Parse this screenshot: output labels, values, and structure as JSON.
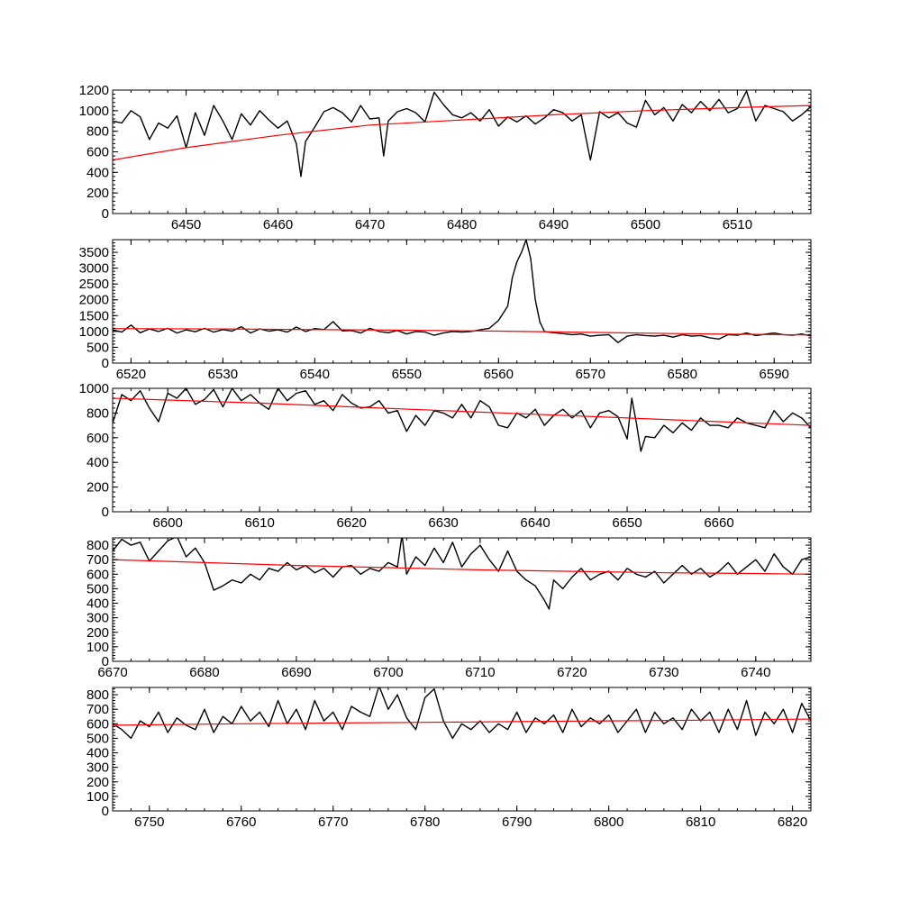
{
  "colors": {
    "spectrum": "#000000",
    "continuum": "#ff0000",
    "axes": "#000000",
    "background": "#ffffff"
  },
  "chart_data": [
    {
      "type": "line",
      "title": "",
      "xlabel": "",
      "ylabel": "",
      "xlim": [
        6442,
        6518
      ],
      "ylim": [
        0,
        1200
      ],
      "xticks": [
        6450,
        6460,
        6470,
        6480,
        6490,
        6500,
        6510
      ],
      "yticks": [
        0,
        200,
        400,
        600,
        800,
        1000,
        1200
      ],
      "grid": false,
      "series": [
        {
          "role": "spectrum",
          "x": [
            6442,
            6443,
            6444,
            6445,
            6446,
            6447,
            6448,
            6449,
            6450,
            6451,
            6452,
            6453,
            6454,
            6455,
            6456,
            6457,
            6458,
            6459,
            6460,
            6461,
            6462,
            6462.5,
            6463,
            6464,
            6465,
            6466,
            6467,
            6468,
            6469,
            6470,
            6471,
            6471.5,
            6472,
            6473,
            6474,
            6475,
            6476,
            6477,
            6478,
            6479,
            6480,
            6481,
            6482,
            6483,
            6484,
            6485,
            6486,
            6487,
            6488,
            6489,
            6490,
            6491,
            6492,
            6493,
            6494,
            6495,
            6496,
            6497,
            6498,
            6499,
            6500,
            6501,
            6502,
            6503,
            6504,
            6505,
            6506,
            6507,
            6508,
            6509,
            6510,
            6511,
            6512,
            6513,
            6514,
            6515,
            6516,
            6517,
            6518
          ],
          "y": [
            900,
            880,
            1000,
            940,
            720,
            880,
            830,
            950,
            640,
            980,
            760,
            1050,
            900,
            720,
            970,
            860,
            1000,
            910,
            830,
            900,
            680,
            360,
            700,
            840,
            990,
            1030,
            980,
            890,
            1050,
            920,
            930,
            560,
            900,
            990,
            1020,
            980,
            890,
            1180,
            1060,
            960,
            930,
            980,
            900,
            1010,
            850,
            940,
            890,
            950,
            870,
            930,
            1010,
            980,
            900,
            960,
            520,
            990,
            930,
            980,
            880,
            840,
            1100,
            960,
            1030,
            900,
            1060,
            980,
            1090,
            1000,
            1110,
            980,
            1020,
            1190,
            900,
            1050,
            1020,
            990,
            900,
            960,
            1040
          ]
        },
        {
          "role": "continuum",
          "x": [
            6442,
            6450,
            6460,
            6470,
            6480,
            6490,
            6500,
            6510,
            6518
          ],
          "y": [
            520,
            640,
            760,
            860,
            910,
            960,
            1000,
            1030,
            1050
          ]
        }
      ]
    },
    {
      "type": "line",
      "title": "",
      "xlabel": "",
      "ylabel": "",
      "xlim": [
        6518,
        6594
      ],
      "ylim": [
        0,
        3900
      ],
      "xticks": [
        6520,
        6530,
        6540,
        6550,
        6560,
        6570,
        6580,
        6590
      ],
      "yticks": [
        0,
        500,
        1000,
        1500,
        2000,
        2500,
        3000,
        3500
      ],
      "grid": false,
      "series": [
        {
          "role": "spectrum",
          "x": [
            6518,
            6519,
            6520,
            6521,
            6522,
            6523,
            6524,
            6525,
            6526,
            6527,
            6528,
            6529,
            6530,
            6531,
            6532,
            6533,
            6534,
            6535,
            6536,
            6537,
            6538,
            6539,
            6540,
            6541,
            6542,
            6543,
            6544,
            6545,
            6546,
            6547,
            6548,
            6549,
            6550,
            6551,
            6552,
            6553,
            6554,
            6555,
            6556,
            6557,
            6558,
            6559,
            6560,
            6561,
            6561.5,
            6562,
            6562.5,
            6563,
            6563.5,
            6564,
            6564.5,
            6565,
            6566,
            6567,
            6568,
            6569,
            6570,
            6571,
            6572,
            6573,
            6574,
            6575,
            6576,
            6577,
            6578,
            6579,
            6580,
            6581,
            6582,
            6583,
            6584,
            6585,
            6586,
            6587,
            6588,
            6589,
            6590,
            6591,
            6592,
            6593,
            6594
          ],
          "y": [
            1050,
            980,
            1200,
            960,
            1080,
            1000,
            1100,
            950,
            1050,
            990,
            1100,
            980,
            1060,
            1010,
            1150,
            950,
            1080,
            1010,
            1050,
            980,
            1140,
            1000,
            1090,
            1060,
            1310,
            1020,
            1030,
            950,
            1100,
            1000,
            960,
            1030,
            920,
            1000,
            980,
            880,
            950,
            1000,
            980,
            1000,
            1050,
            1100,
            1350,
            1800,
            2700,
            3200,
            3500,
            3900,
            3300,
            2000,
            1300,
            1000,
            960,
            930,
            900,
            920,
            850,
            880,
            900,
            650,
            850,
            900,
            870,
            850,
            880,
            820,
            900,
            850,
            870,
            800,
            760,
            900,
            880,
            950,
            870,
            910,
            950,
            900,
            880,
            920,
            860
          ]
        },
        {
          "role": "continuum",
          "x": [
            6518,
            6530,
            6540,
            6550,
            6560,
            6570,
            6580,
            6590,
            6594
          ],
          "y": [
            1090,
            1080,
            1060,
            1040,
            1010,
            970,
            930,
            900,
            890
          ]
        }
      ]
    },
    {
      "type": "line",
      "title": "",
      "xlabel": "",
      "ylabel": "",
      "xlim": [
        6594,
        6670
      ],
      "ylim": [
        0,
        1000
      ],
      "xticks": [
        6600,
        6610,
        6620,
        6630,
        6640,
        6650,
        6660
      ],
      "yticks": [
        0,
        200,
        400,
        600,
        800,
        1000
      ],
      "grid": false,
      "series": [
        {
          "role": "spectrum",
          "x": [
            6594,
            6595,
            6596,
            6597,
            6598,
            6599,
            6600,
            6601,
            6602,
            6603,
            6604,
            6605,
            6606,
            6607,
            6608,
            6609,
            6610,
            6611,
            6612,
            6613,
            6614,
            6615,
            6616,
            6617,
            6618,
            6619,
            6620,
            6621,
            6622,
            6623,
            6624,
            6625,
            6626,
            6627,
            6628,
            6629,
            6630,
            6631,
            6632,
            6633,
            6634,
            6635,
            6636,
            6637,
            6638,
            6639,
            6640,
            6641,
            6642,
            6643,
            6644,
            6645,
            6646,
            6647,
            6648,
            6649,
            6650,
            6650.5,
            6651,
            6651.5,
            6652,
            6653,
            6654,
            6655,
            6656,
            6657,
            6658,
            6659,
            6660,
            6661,
            6662,
            6663,
            6664,
            6665,
            6666,
            6667,
            6668,
            6669,
            6670
          ],
          "y": [
            720,
            950,
            900,
            980,
            840,
            730,
            960,
            920,
            1000,
            870,
            910,
            990,
            850,
            1000,
            900,
            950,
            880,
            830,
            1000,
            900,
            960,
            980,
            870,
            900,
            820,
            950,
            880,
            840,
            850,
            900,
            800,
            820,
            650,
            780,
            700,
            820,
            800,
            760,
            870,
            760,
            900,
            850,
            700,
            680,
            800,
            760,
            830,
            700,
            780,
            830,
            760,
            820,
            680,
            800,
            820,
            770,
            590,
            920,
            720,
            490,
            610,
            600,
            700,
            640,
            720,
            660,
            760,
            700,
            700,
            680,
            760,
            720,
            700,
            680,
            820,
            730,
            800,
            760,
            680
          ]
        },
        {
          "role": "continuum",
          "x": [
            6594,
            6600,
            6610,
            6620,
            6630,
            6640,
            6650,
            6660,
            6670
          ],
          "y": [
            920,
            905,
            880,
            850,
            820,
            790,
            760,
            730,
            700
          ]
        }
      ]
    },
    {
      "type": "line",
      "title": "",
      "xlabel": "",
      "ylabel": "",
      "xlim": [
        6670,
        6746
      ],
      "ylim": [
        0,
        850
      ],
      "xticks": [
        6670,
        6680,
        6690,
        6700,
        6710,
        6720,
        6730,
        6740
      ],
      "yticks": [
        0,
        100,
        200,
        300,
        400,
        500,
        600,
        700,
        800
      ],
      "grid": false,
      "series": [
        {
          "role": "spectrum",
          "x": [
            6670,
            6671,
            6672,
            6673,
            6674,
            6675,
            6676,
            6677,
            6678,
            6679,
            6680,
            6681,
            6682,
            6683,
            6684,
            6685,
            6686,
            6687,
            6688,
            6689,
            6690,
            6691,
            6692,
            6693,
            6694,
            6695,
            6696,
            6697,
            6698,
            6699,
            6700,
            6701,
            6701.5,
            6702,
            6703,
            6704,
            6705,
            6706,
            6707,
            6708,
            6709,
            6710,
            6711,
            6712,
            6713,
            6714,
            6715,
            6716,
            6717,
            6717.5,
            6718,
            6719,
            6720,
            6721,
            6722,
            6723,
            6724,
            6725,
            6726,
            6727,
            6728,
            6729,
            6730,
            6731,
            6732,
            6733,
            6734,
            6735,
            6736,
            6737,
            6738,
            6739,
            6740,
            6741,
            6742,
            6743,
            6744,
            6745,
            6746
          ],
          "y": [
            760,
            840,
            800,
            820,
            690,
            760,
            830,
            860,
            720,
            780,
            680,
            490,
            520,
            560,
            540,
            600,
            560,
            640,
            620,
            680,
            630,
            660,
            610,
            640,
            580,
            650,
            660,
            600,
            640,
            620,
            680,
            650,
            870,
            600,
            720,
            660,
            780,
            680,
            820,
            650,
            740,
            800,
            700,
            620,
            760,
            620,
            560,
            520,
            420,
            360,
            560,
            500,
            580,
            640,
            560,
            600,
            620,
            560,
            640,
            600,
            580,
            620,
            540,
            600,
            660,
            600,
            640,
            580,
            620,
            680,
            600,
            650,
            700,
            620,
            740,
            650,
            600,
            700,
            720
          ]
        },
        {
          "role": "continuum",
          "x": [
            6670,
            6680,
            6690,
            6700,
            6710,
            6720,
            6730,
            6740,
            6746
          ],
          "y": [
            700,
            680,
            660,
            645,
            630,
            620,
            610,
            605,
            600
          ]
        }
      ]
    },
    {
      "type": "line",
      "title": "",
      "xlabel": "",
      "ylabel": "",
      "xlim": [
        6746,
        6822
      ],
      "ylim": [
        0,
        850
      ],
      "xticks": [
        6750,
        6760,
        6770,
        6780,
        6790,
        6800,
        6810,
        6820
      ],
      "yticks": [
        0,
        100,
        200,
        300,
        400,
        500,
        600,
        700,
        800
      ],
      "grid": false,
      "series": [
        {
          "role": "spectrum",
          "x": [
            6746,
            6747,
            6748,
            6749,
            6750,
            6751,
            6752,
            6753,
            6754,
            6755,
            6756,
            6757,
            6758,
            6759,
            6760,
            6761,
            6762,
            6763,
            6764,
            6765,
            6766,
            6767,
            6768,
            6769,
            6770,
            6771,
            6772,
            6773,
            6774,
            6775,
            6776,
            6777,
            6778,
            6779,
            6780,
            6781,
            6782,
            6783,
            6784,
            6785,
            6786,
            6787,
            6788,
            6789,
            6790,
            6791,
            6792,
            6793,
            6794,
            6795,
            6796,
            6797,
            6798,
            6799,
            6800,
            6801,
            6802,
            6803,
            6804,
            6805,
            6806,
            6807,
            6808,
            6809,
            6810,
            6811,
            6812,
            6813,
            6814,
            6815,
            6816,
            6817,
            6818,
            6819,
            6820,
            6821,
            6822
          ],
          "y": [
            600,
            560,
            500,
            620,
            580,
            680,
            540,
            640,
            590,
            560,
            700,
            540,
            650,
            600,
            720,
            620,
            680,
            580,
            760,
            600,
            700,
            560,
            760,
            620,
            680,
            560,
            720,
            680,
            650,
            860,
            700,
            800,
            640,
            560,
            780,
            840,
            620,
            500,
            600,
            560,
            620,
            540,
            600,
            560,
            680,
            540,
            640,
            600,
            660,
            540,
            700,
            580,
            640,
            600,
            660,
            540,
            620,
            700,
            540,
            680,
            600,
            640,
            560,
            700,
            620,
            680,
            540,
            700,
            560,
            760,
            520,
            680,
            600,
            700,
            540,
            740,
            620
          ]
        },
        {
          "role": "continuum",
          "x": [
            6746,
            6760,
            6770,
            6780,
            6790,
            6800,
            6810,
            6822
          ],
          "y": [
            590,
            600,
            605,
            610,
            615,
            620,
            625,
            632
          ]
        }
      ]
    }
  ]
}
